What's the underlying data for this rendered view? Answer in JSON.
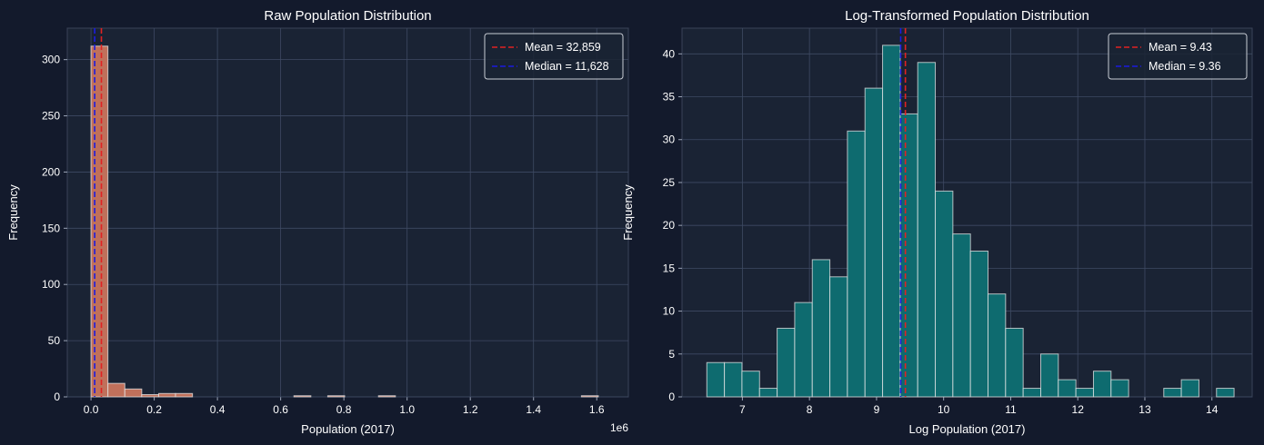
{
  "chart_data": [
    {
      "type": "bar",
      "title": "Raw Population Distribution",
      "xlabel": "Population (2017)",
      "ylabel": "Frequency",
      "x_offset_label": "1e6",
      "xlim": [
        -0.075,
        1.7
      ],
      "ylim": [
        0,
        328
      ],
      "xticks": [
        "0.0",
        "0.2",
        "0.4",
        "0.6",
        "0.8",
        "1.0",
        "1.2",
        "1.4",
        "1.6"
      ],
      "yticks": [
        "0",
        "50",
        "100",
        "150",
        "200",
        "250",
        "300"
      ],
      "grid": true,
      "bin_edges_start": 0,
      "bin_width": 0.0535,
      "values": [
        312,
        12,
        7,
        2,
        3,
        3,
        0,
        0,
        0,
        0,
        0,
        0,
        1,
        0,
        1,
        0,
        0,
        1,
        0,
        0,
        0,
        0,
        0,
        0,
        0,
        0,
        0,
        0,
        0,
        1
      ],
      "bar_color": "#c0705b",
      "mean": {
        "value": 0.032859,
        "label": "Mean = 32,859",
        "color": "#e02222"
      },
      "median": {
        "value": 0.011628,
        "label": "Median = 11,628",
        "color": "#1b1be0"
      },
      "legend_position": "top-right"
    },
    {
      "type": "bar",
      "title": "Log-Transformed Population Distribution",
      "xlabel": "Log Population (2017)",
      "ylabel": "Frequency",
      "xlim": [
        6.1,
        14.6
      ],
      "ylim": [
        0,
        43
      ],
      "xticks": [
        "7",
        "8",
        "9",
        "10",
        "11",
        "12",
        "13",
        "14"
      ],
      "yticks": [
        "0",
        "5",
        "10",
        "15",
        "20",
        "25",
        "30",
        "35",
        "40"
      ],
      "grid": true,
      "bin_edges_start": 6.47,
      "bin_width": 0.262,
      "values": [
        4,
        4,
        3,
        1,
        8,
        11,
        16,
        14,
        31,
        36,
        41,
        33,
        39,
        24,
        19,
        17,
        12,
        8,
        1,
        5,
        2,
        1,
        3,
        2,
        0,
        0,
        1,
        2,
        0,
        1
      ],
      "bar_color": "#0e6b6f",
      "mean": {
        "value": 9.43,
        "label": "Mean = 9.43",
        "color": "#e02222"
      },
      "median": {
        "value": 9.36,
        "label": "Median = 9.36",
        "color": "#1b1be0"
      },
      "legend_position": "top-right"
    }
  ]
}
